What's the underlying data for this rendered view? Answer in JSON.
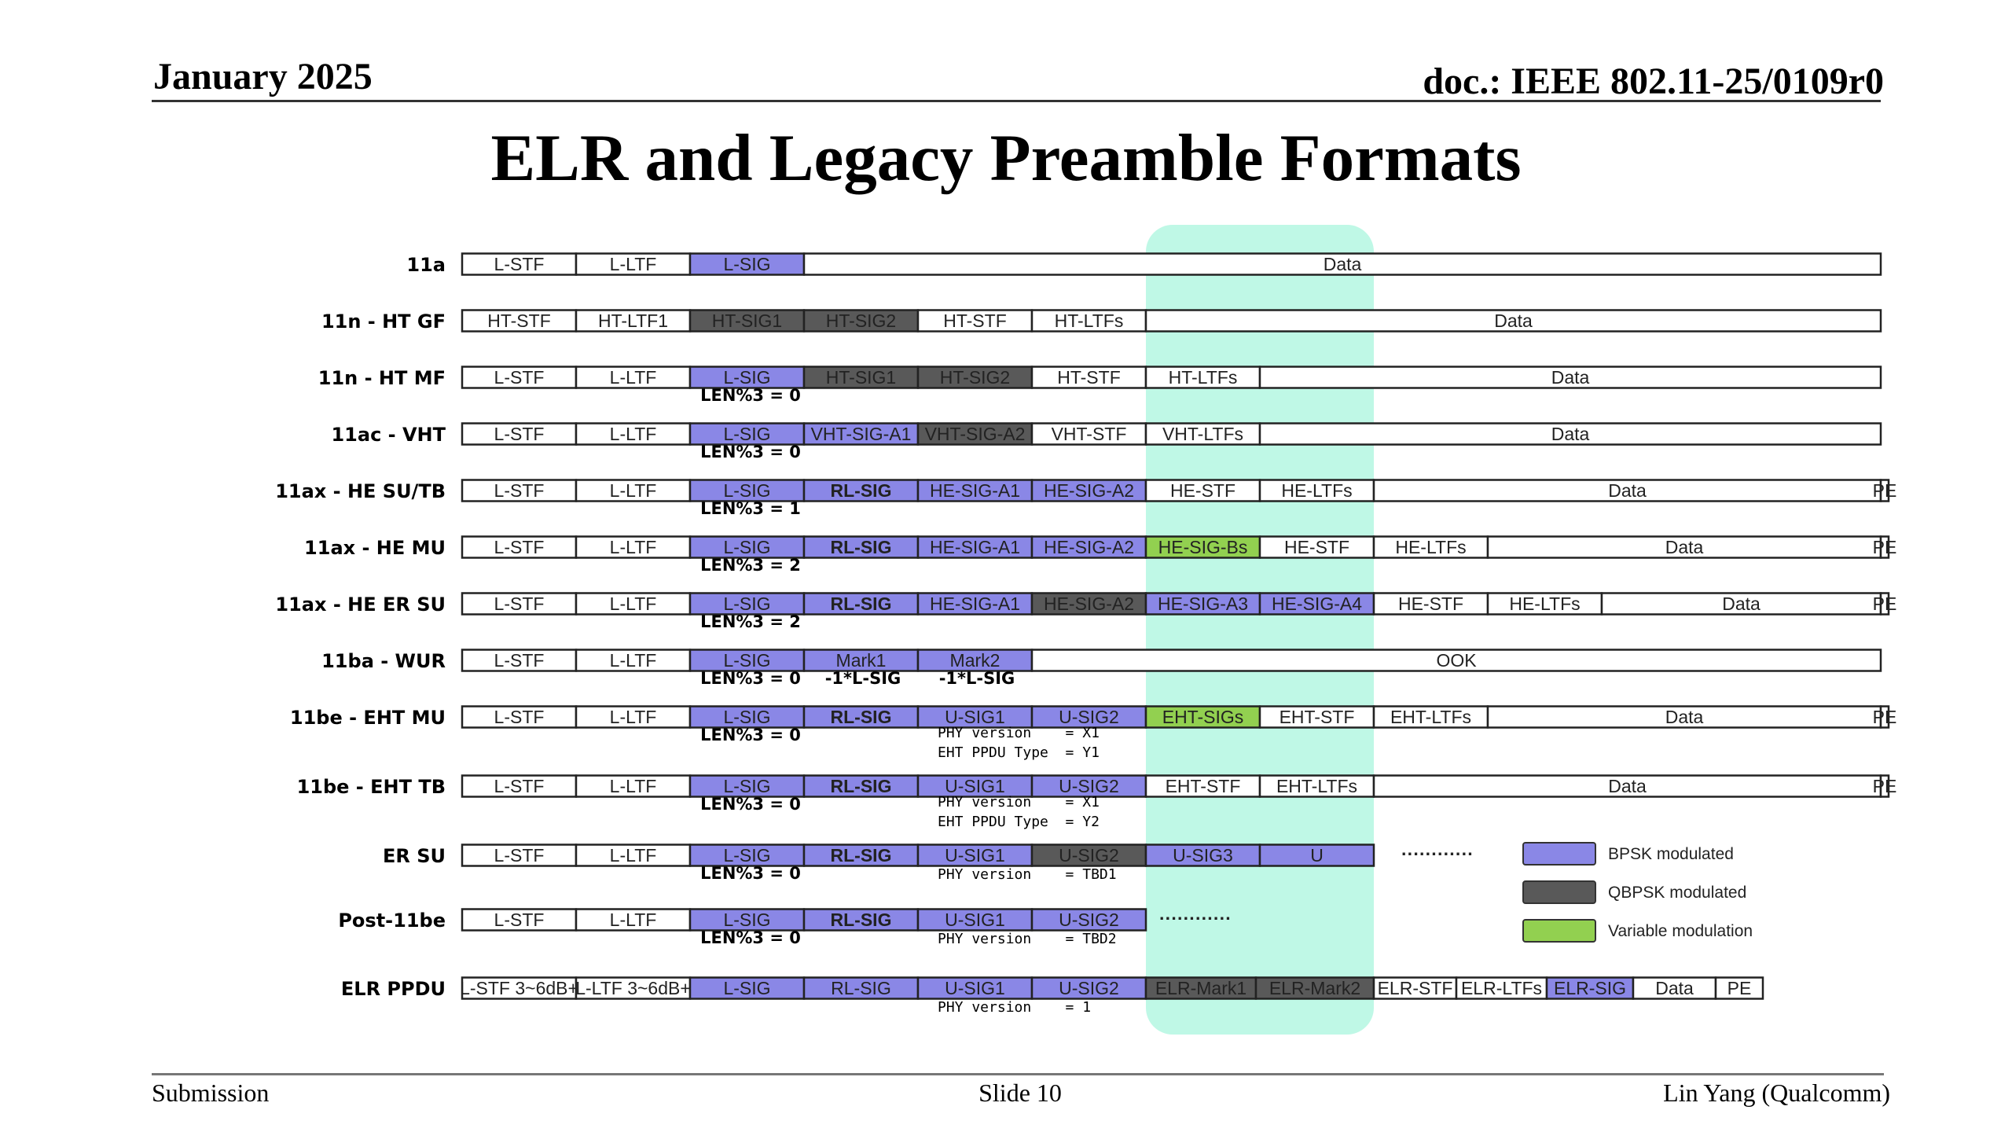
{
  "header": {
    "date": "January 2025",
    "doc": "doc.: IEEE 802.11-25/0109r0"
  },
  "title": "ELR and Legacy Preamble Formats",
  "footer": {
    "left": "Submission",
    "center": "Slide 10",
    "right": "Lin Yang (Qualcomm)"
  },
  "colors": {
    "bpsk": "#8a87e6",
    "qbpsk": "#595959",
    "variable": "#92d050",
    "highlight": "#bff8e6",
    "plain": "#ffffff"
  },
  "legend": [
    {
      "label": "BPSK modulated",
      "type": "bpsk"
    },
    {
      "label": "QBPSK modulated",
      "type": "qbpsk"
    },
    {
      "label": "Variable modulation",
      "type": "variable"
    }
  ],
  "rows": [
    {
      "label": "11a",
      "segments": [
        {
          "text": "L-STF",
          "type": "plain"
        },
        {
          "text": "L-LTF",
          "type": "plain"
        },
        {
          "text": "L-SIG",
          "type": "bpsk"
        },
        {
          "text": "Data",
          "type": "plain"
        }
      ],
      "notes": []
    },
    {
      "label": "11n - HT GF",
      "segments": [
        {
          "text": "HT-STF",
          "type": "plain"
        },
        {
          "text": "HT-LTF1",
          "type": "plain"
        },
        {
          "text": "HT-SIG1",
          "type": "qbpsk"
        },
        {
          "text": "HT-SIG2",
          "type": "qbpsk"
        },
        {
          "text": "HT-STF",
          "type": "plain"
        },
        {
          "text": "HT-LTFs",
          "type": "plain"
        },
        {
          "text": "Data",
          "type": "plain"
        }
      ],
      "notes": []
    },
    {
      "label": "11n - HT MF",
      "segments": [
        {
          "text": "L-STF",
          "type": "plain"
        },
        {
          "text": "L-LTF",
          "type": "plain"
        },
        {
          "text": "L-SIG",
          "type": "bpsk"
        },
        {
          "text": "HT-SIG1",
          "type": "qbpsk"
        },
        {
          "text": "HT-SIG2",
          "type": "qbpsk"
        },
        {
          "text": "HT-STF",
          "type": "plain"
        },
        {
          "text": "HT-LTFs",
          "type": "plain"
        },
        {
          "text": "Data",
          "type": "plain"
        }
      ],
      "notes": [
        {
          "text": "LEN%3 = 0"
        }
      ]
    },
    {
      "label": "11ac - VHT",
      "segments": [
        {
          "text": "L-STF",
          "type": "plain"
        },
        {
          "text": "L-LTF",
          "type": "plain"
        },
        {
          "text": "L-SIG",
          "type": "bpsk"
        },
        {
          "text": "VHT-SIG-A1",
          "type": "bpsk"
        },
        {
          "text": "VHT-SIG-A2",
          "type": "qbpsk"
        },
        {
          "text": "VHT-STF",
          "type": "plain"
        },
        {
          "text": "VHT-LTFs",
          "type": "plain"
        },
        {
          "text": "Data",
          "type": "plain"
        }
      ],
      "notes": [
        {
          "text": "LEN%3 = 0"
        }
      ]
    },
    {
      "label": "11ax - HE SU/TB",
      "segments": [
        {
          "text": "L-STF",
          "type": "plain"
        },
        {
          "text": "L-LTF",
          "type": "plain"
        },
        {
          "text": "L-SIG",
          "type": "bpsk"
        },
        {
          "text": "RL-SIG",
          "type": "bpsk",
          "bold": true
        },
        {
          "text": "HE-SIG-A1",
          "type": "bpsk"
        },
        {
          "text": "HE-SIG-A2",
          "type": "bpsk"
        },
        {
          "text": "HE-STF",
          "type": "plain"
        },
        {
          "text": "HE-LTFs",
          "type": "plain"
        },
        {
          "text": "Data",
          "type": "plain"
        },
        {
          "text": "PE",
          "type": "plain"
        }
      ],
      "notes": [
        {
          "text": "LEN%3 = 1"
        }
      ]
    },
    {
      "label": "11ax - HE MU",
      "segments": [
        {
          "text": "L-STF",
          "type": "plain"
        },
        {
          "text": "L-LTF",
          "type": "plain"
        },
        {
          "text": "L-SIG",
          "type": "bpsk"
        },
        {
          "text": "RL-SIG",
          "type": "bpsk",
          "bold": true
        },
        {
          "text": "HE-SIG-A1",
          "type": "bpsk"
        },
        {
          "text": "HE-SIG-A2",
          "type": "bpsk"
        },
        {
          "text": "HE-SIG-Bs",
          "type": "variable"
        },
        {
          "text": "HE-STF",
          "type": "plain"
        },
        {
          "text": "HE-LTFs",
          "type": "plain"
        },
        {
          "text": "Data",
          "type": "plain"
        },
        {
          "text": "PE",
          "type": "plain"
        }
      ],
      "notes": [
        {
          "text": "LEN%3 = 2"
        }
      ]
    },
    {
      "label": "11ax - HE ER SU",
      "segments": [
        {
          "text": "L-STF",
          "type": "plain"
        },
        {
          "text": "L-LTF",
          "type": "plain"
        },
        {
          "text": "L-SIG",
          "type": "bpsk"
        },
        {
          "text": "RL-SIG",
          "type": "bpsk",
          "bold": true
        },
        {
          "text": "HE-SIG-A1",
          "type": "bpsk"
        },
        {
          "text": "HE-SIG-A2",
          "type": "qbpsk"
        },
        {
          "text": "HE-SIG-A3",
          "type": "bpsk"
        },
        {
          "text": "HE-SIG-A4",
          "type": "bpsk"
        },
        {
          "text": "HE-STF",
          "type": "plain"
        },
        {
          "text": "HE-LTFs",
          "type": "plain"
        },
        {
          "text": "Data",
          "type": "plain"
        },
        {
          "text": "PE",
          "type": "plain"
        }
      ],
      "notes": [
        {
          "text": "LEN%3 = 2"
        }
      ]
    },
    {
      "label": "11ba - WUR",
      "segments": [
        {
          "text": "L-STF",
          "type": "plain"
        },
        {
          "text": "L-LTF",
          "type": "plain"
        },
        {
          "text": "L-SIG",
          "type": "bpsk"
        },
        {
          "text": "Mark1",
          "type": "bpsk"
        },
        {
          "text": "Mark2",
          "type": "bpsk"
        },
        {
          "text": "OOK",
          "type": "plain"
        }
      ],
      "notes": [
        {
          "text": "LEN%3 = 0"
        },
        {
          "text": "-1*L-SIG"
        },
        {
          "text": "-1*L-SIG"
        }
      ]
    },
    {
      "label": "11be - EHT MU",
      "segments": [
        {
          "text": "L-STF",
          "type": "plain"
        },
        {
          "text": "L-LTF",
          "type": "plain"
        },
        {
          "text": "L-SIG",
          "type": "bpsk"
        },
        {
          "text": "RL-SIG",
          "type": "bpsk",
          "bold": true
        },
        {
          "text": "U-SIG1",
          "type": "bpsk"
        },
        {
          "text": "U-SIG2",
          "type": "bpsk"
        },
        {
          "text": "EHT-SIGs",
          "type": "variable"
        },
        {
          "text": "EHT-STF",
          "type": "plain"
        },
        {
          "text": "EHT-LTFs",
          "type": "plain"
        },
        {
          "text": "Data",
          "type": "plain"
        },
        {
          "text": "PE",
          "type": "plain"
        }
      ],
      "notes": [
        {
          "text": "LEN%3 = 0"
        },
        {
          "text": "PHY version    = X1",
          "mono": true
        },
        {
          "text": "EHT PPDU Type  = Y1",
          "mono": true
        }
      ]
    },
    {
      "label": "11be - EHT TB",
      "segments": [
        {
          "text": "L-STF",
          "type": "plain"
        },
        {
          "text": "L-LTF",
          "type": "plain"
        },
        {
          "text": "L-SIG",
          "type": "bpsk"
        },
        {
          "text": "RL-SIG",
          "type": "bpsk",
          "bold": true
        },
        {
          "text": "U-SIG1",
          "type": "bpsk"
        },
        {
          "text": "U-SIG2",
          "type": "bpsk"
        },
        {
          "text": "EHT-STF",
          "type": "plain"
        },
        {
          "text": "EHT-LTFs",
          "type": "plain"
        },
        {
          "text": "Data",
          "type": "plain"
        },
        {
          "text": "PE",
          "type": "plain"
        }
      ],
      "notes": [
        {
          "text": "LEN%3 = 0"
        },
        {
          "text": "PHY version    = X1",
          "mono": true
        },
        {
          "text": "EHT PPDU Type  = Y2",
          "mono": true
        }
      ]
    },
    {
      "label": "ER SU",
      "segments": [
        {
          "text": "L-STF",
          "type": "plain"
        },
        {
          "text": "L-LTF",
          "type": "plain"
        },
        {
          "text": "L-SIG",
          "type": "bpsk"
        },
        {
          "text": "RL-SIG",
          "type": "bpsk",
          "bold": true
        },
        {
          "text": "U-SIG1",
          "type": "bpsk"
        },
        {
          "text": "U-SIG2",
          "type": "qbpsk"
        },
        {
          "text": "U-SIG3",
          "type": "bpsk"
        },
        {
          "text": "U",
          "type": "bpsk"
        }
      ],
      "trail": "············",
      "notes": [
        {
          "text": "LEN%3 = 0"
        },
        {
          "text": "PHY version    = TBD1",
          "mono": true
        }
      ]
    },
    {
      "label": "Post-11be",
      "segments": [
        {
          "text": "L-STF",
          "type": "plain"
        },
        {
          "text": "L-LTF",
          "type": "plain"
        },
        {
          "text": "L-SIG",
          "type": "bpsk"
        },
        {
          "text": "RL-SIG",
          "type": "bpsk",
          "bold": true
        },
        {
          "text": "U-SIG1",
          "type": "bpsk"
        },
        {
          "text": "U-SIG2",
          "type": "bpsk"
        }
      ],
      "trail": "············",
      "notes": [
        {
          "text": "LEN%3 = 0"
        },
        {
          "text": "PHY version    = TBD2",
          "mono": true
        }
      ]
    },
    {
      "label": "ELR PPDU",
      "segments": [
        {
          "text": "L-STF 3~6dB+",
          "type": "plain",
          "small": true
        },
        {
          "text": "L-LTF 3~6dB+",
          "type": "plain",
          "small": true
        },
        {
          "text": "L-SIG",
          "type": "bpsk"
        },
        {
          "text": "RL-SIG",
          "type": "bpsk"
        },
        {
          "text": "U-SIG1",
          "type": "bpsk"
        },
        {
          "text": "U-SIG2",
          "type": "bpsk"
        },
        {
          "text": "ELR-Mark1",
          "type": "qbpsk"
        },
        {
          "text": "ELR-Mark2",
          "type": "qbpsk"
        },
        {
          "text": "ELR-STF",
          "type": "plain"
        },
        {
          "text": "ELR-LTFs",
          "type": "plain"
        },
        {
          "text": "ELR-SIG",
          "type": "bpsk"
        },
        {
          "text": "Data",
          "type": "plain"
        },
        {
          "text": "PE",
          "type": "plain"
        }
      ],
      "notes": [
        {
          "text": "PHY version    = 1",
          "mono": true
        }
      ]
    }
  ]
}
